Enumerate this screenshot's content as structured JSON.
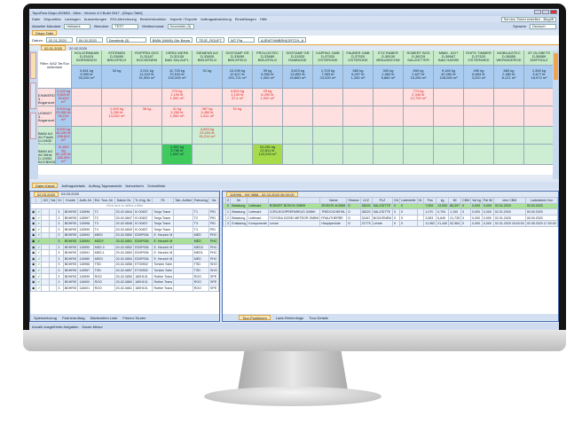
{
  "window": {
    "title": "TopoFlow Dispo AS/MW - Mein - Version 4.0 Build 2047 - [Dispo-Tafel]",
    "right_button": "Service-Ticket erstellen - Begriff",
    "language_label": "Sprache",
    "language": "Deutsch"
  },
  "menu": [
    "Datei",
    "Disposition",
    "Ladungen",
    "Auswertungen",
    "EDI-Abrechnung",
    "Bereichsfunktion",
    "Importe / Exporte",
    "Auftragsabwicklung",
    "Einstellungen",
    "Hilfe"
  ],
  "toolbar": {
    "mandant_label": "Aktueller Mandant",
    "mandant": "Hellwerk",
    "benutzer_label": "Benutzer",
    "benutzer": "TEST",
    "modul_label": "Medienmonat",
    "modul": "Dezembik (3)"
  },
  "main_tab": "Dispo-Tafel",
  "filter": {
    "datum_label": "Datum",
    "date_from": "02.01.2020",
    "date_to": "00.00.2020",
    "f1": "Dezebnik (3)",
    "f2": "BMW (NWN) Gbr Beum",
    "f3": "TEJE_ROUFT",
    "f4": "WT Pla",
    "f5": "AJEWTHMBRH|ORTCH_A"
  },
  "date_tabs": [
    "02.01.2020",
    "20.02.2020"
  ],
  "grid": {
    "corner_text": "Filter: 6/42 Ter/Tov ondensen",
    "customers": [
      {
        "name": "HOLLERMANN",
        "code": "D-33415",
        "city": "BORNSDEN",
        "sum": [
          "3,461 kg",
          "9,990 ltr",
          "33,200 m³"
        ]
      },
      {
        "name": "STERNEN",
        "code": "D-33690",
        "city": "BIELEFELD",
        "sum": [
          "34 kg",
          "",
          ""
        ]
      },
      {
        "name": "ROPPEN GDS",
        "code": "D-31167",
        "city": "BOCKENEM",
        "sum": [
          "2,011 kg",
          "11,010 ltr",
          "31,900 m³"
        ]
      },
      {
        "name": "CERDI WERK",
        "code": "D-32105",
        "city": "BAD SALZUFL",
        "sum": [
          "11,733 kg",
          "70,510 ltr",
          "102,000 m³"
        ]
      },
      {
        "name": "SIEMENS AG",
        "code": "D-33605",
        "city": "BIELEFELD",
        "sum": [
          "51 kg",
          "",
          ""
        ]
      },
      {
        "name": "SOSTAMP GR",
        "code": "D-33659",
        "city": "BIELEFELD",
        "sum": [
          "10,290 kg",
          "10,617 ltr",
          "201,721 m³"
        ]
      },
      {
        "name": "PROLOGTEC",
        "code": "D-33689",
        "city": "BIELEFELD",
        "sum": [
          "39 kg",
          "6,990 ltr",
          "1,050 m³"
        ]
      },
      {
        "name": "SOSTAMP GR",
        "code": "D-31833",
        "city": "RAMNODE",
        "sum": [
          "3,623 kg",
          "13,892 ltr",
          "20,880 m³"
        ]
      },
      {
        "name": "KAPPAG GMB",
        "code": "D-37520",
        "city": "OSTERODE",
        "sum": [
          "1,703 kg",
          "7,953 ltr",
          "23,200 m³"
        ]
      },
      {
        "name": "FAUBER GMB",
        "code": "D-37520",
        "city": "OSTERODE",
        "sum": [
          "583 kg",
          "6,007 ltr",
          "1,260 m³"
        ]
      },
      {
        "name": "ETZ RABER",
        "code": "D-38100",
        "city": "BRAUNSCHW",
        "sum": [
          "300 kg",
          "1,560 ltr",
          "5,880 m³"
        ]
      },
      {
        "name": "ROBERT BOS",
        "code": "D-38229",
        "city": "SALZGITTER",
        "sum": [
          "890 kg",
          "2,627 ltr",
          "15,260 m³"
        ]
      },
      {
        "name": "MMM - BOT",
        "code": "D-38667",
        "city": "BAD HARZB",
        "sum": [
          "9,180 kg",
          "40,280 ltr",
          "108,060 m³"
        ]
      },
      {
        "name": "ROPG TIMMER",
        "code": "D-37520",
        "city": "OSTERWIED",
        "sum": [
          "490 kg",
          "8,654 ltr",
          "3,220 m³"
        ]
      },
      {
        "name": "MOBILAGTEC",
        "code": "D-38855",
        "city": "WERNIGEROD",
        "sum": [
          "660 kg",
          "2,382 ltr",
          "8,121 m³"
        ]
      },
      {
        "name": "ZF GLOBETS",
        "code": "D-38889",
        "city": "DIEPHOLZ",
        "sum": [
          "1,350 kg",
          "3,677 ltr",
          "18,072 m³"
        ]
      }
    ],
    "depots": [
      {
        "name": "EINWERDER",
        "sub": "3 - Bugansort",
        "wa": "WA",
        "sum": [
          "3,120 kg",
          "9,810 ltr",
          "33,810 m³"
        ],
        "color": "pink",
        "cells": {
          "3": [
            "270 kg",
            "1,100 ltr",
            "1,350 m³"
          ],
          "5": [
            "4,500 kg",
            "1,100 ltr",
            "37,4 m³"
          ],
          "6": [
            "29 kg",
            "6,090 ltr",
            "1,000 m³"
          ],
          "11": [
            "774 kg",
            "2,340 ltr",
            "12,700 m³"
          ]
        }
      },
      {
        "name": "LEMWIT",
        "sub": "3 - Bugansort",
        "wa": "WA",
        "sum": [
          "9,934 kg",
          "29,900 ltr",
          "90,210 m³"
        ],
        "color": "pink",
        "cells": {
          "1": [
            "1,490 kg",
            "3,250 ltr",
            "13,250 m³"
          ],
          "2": [
            "38 kg",
            "",
            ""
          ],
          "3": [
            "41 kg",
            "3,250 ltr",
            "1,350 m³"
          ],
          "4": [
            "387 kg",
            "3,450 ltr",
            "1,011 m³"
          ],
          "5": [
            "51 kg",
            "",
            ""
          ]
        }
      },
      {
        "name": "BMW AG AV Paulin",
        "sub": "D-02630 Bocksitter",
        "wa": "WA",
        "sum": [
          "9,930 kg",
          "46,200 ltr",
          "285,810 m³"
        ],
        "color": "green",
        "cells": {
          "4": [
            "4,953 kg",
            "23,104 ltr",
            "91,214 m³"
          ]
        }
      },
      {
        "name": "BMW AG AV Mihle",
        "sub": "D-10953 BOCBNSIN",
        "wa": "WA",
        "sum": [
          "21,600 kg",
          "81,220 ltr",
          "280,090 m³"
        ],
        "color": "green",
        "cells": {
          "3": [
            "1,351 kg",
            "3,750 ltr",
            "1,000 m³"
          ],
          "6": [
            "10,281 kg",
            "22,811 ltr",
            "120,033 m³"
          ]
        },
        "hot": {
          "3": "hot",
          "6": "lime"
        }
      }
    ]
  },
  "bottom_tabs": [
    "Dater-Kanal",
    "Auftragsdetails",
    "Auftrag-Tagesansicht",
    "Nahverkehr",
    "Schnellliste"
  ],
  "left_panel": {
    "tabs": [
      "02.03.2020",
      "03.03.2020"
    ],
    "group_hint": "Click here to define a filter",
    "columns": [
      "",
      "",
      "GG",
      "Sal",
      "Kt.",
      "Kunde",
      "Auftr.-Nr.",
      "Ent. Tour.-Nr.",
      "Datum Nr.",
      "Tr.-Kng. Nr.",
      "Fil.",
      "Tab.-Auftrst",
      "Fahrzeug",
      "Ga"
    ],
    "rows": [
      [
        "3",
        "BDHRIS",
        "115996",
        "T1",
        "20-02-0844",
        "KI 00457",
        "Tonja Trane",
        "",
        "T1",
        "PID"
      ],
      [
        "3",
        "BDHRIS",
        "115997",
        "T2",
        "20-02-0847",
        "KI 00457",
        "Tonja Trane",
        "",
        "T2",
        "PID"
      ],
      [
        "3",
        "BDHRIS",
        "115998",
        "T3",
        "20-02-0848",
        "KI 00457",
        "Tonja Trane",
        "",
        "T3",
        "PID"
      ],
      [
        "3",
        "BDHRIS",
        "115999",
        "T4",
        "20-02-0849",
        "KI 00457",
        "Tonja Trane",
        "",
        "T4",
        "PID"
      ],
      [
        "3",
        "BDHRIS",
        "115993",
        "MEDI",
        "20-02-0850",
        "ED0P006",
        "E. Heurich M",
        "",
        "MED",
        "PHC"
      ],
      [
        "3",
        "BDHRIS",
        "115994",
        "MEDY",
        "20-02-0851",
        "ED0P006",
        "E. Heurich M",
        "",
        "MED",
        "PHC"
      ],
      [
        "3",
        "BDHRIS",
        "115990",
        "MED.3",
        "20-02-0852",
        "ED0P006",
        "E. Heurich M",
        "",
        "MED3",
        "PHC"
      ],
      [
        "3",
        "BDHRIS",
        "115991",
        "MED.1",
        "20-02-0853",
        "ED0P006",
        "E. Heurich M",
        "",
        "MED1",
        "PHC"
      ],
      [
        "3",
        "BDHRIS",
        "115989",
        "MEDI",
        "20-02-0854",
        "ED0P006",
        "E. Heurich M",
        "",
        "MED",
        "PHC"
      ],
      [
        "3",
        "BDHRIS",
        "115956",
        "TSD",
        "20-02-0856",
        "ET00902",
        "Torsten Sahr",
        "",
        "TSD",
        "SHO"
      ],
      [
        "3",
        "BDHRIS",
        "115957",
        "TSD",
        "20-02-0857",
        "ET00902",
        "Torsten Sahr",
        "",
        "TSD",
        "SHO"
      ],
      [
        "3",
        "BDHRIS",
        "115999",
        "ROO",
        "20-02-0859",
        "180H101",
        "Rother Trans",
        "",
        "ROO",
        "SPE"
      ],
      [
        "3",
        "BDHRIS",
        "116000",
        "ROO",
        "20-02-0860",
        "180H101",
        "Rother Trans",
        "",
        "ROO",
        "SPE"
      ],
      [
        "3",
        "BDHRIS",
        "116001",
        "ROO",
        "20-02-0861",
        "180H101",
        "Rother Trans",
        "",
        "ROO",
        "SPE"
      ]
    ],
    "selected_row": 5,
    "footer_tabs": [
      "Spielwerkzeug",
      "Partnerauftrag",
      "Wartezeiten Liste",
      "Firmen-Touren"
    ]
  },
  "right_panel": {
    "tab": "115996 - HH 9858 - 02.03.2020 06:00:00",
    "columns": [
      "",
      "Z",
      "Nr.",
      "",
      "",
      "Name",
      "Strasse",
      "LKZ",
      "PLZ",
      "Ort",
      "Ladestelle",
      "Gr.",
      "Pos",
      "kg",
      "lM",
      "CBM",
      "Val kg",
      "Pal lM",
      "cbm CBM",
      "Ladedatum Von",
      "Ladedatum Bis"
    ],
    "rows": [
      [
        "",
        "0",
        "Beladung",
        "Lieferant",
        "ROBERT BOSCH GMBH",
        "ZEHNTE-KOMM",
        "D",
        "38220",
        "SALZGITTE",
        "0",
        "0",
        "",
        "7,509",
        "13,900",
        "86,397",
        "0",
        "0,000",
        "0,000",
        "02.01.2020",
        "00.00.2020"
      ],
      [
        "",
        "1",
        "Beladung",
        "Lieferant",
        "CORLEOOPREPAREUS GMBH",
        "TREDOCHEHSL",
        "D",
        "38220",
        "SALZGITTE",
        "0",
        "0",
        "",
        "1,070",
        "0,794",
        "1,100",
        "0",
        "0,000",
        "0,000",
        "02.01.2020",
        "00.00.2020"
      ],
      [
        "",
        "2",
        "Beladung",
        "Lieferant",
        "TOYODA GOSEI METEOR GMBH",
        "FRAUTHERRE",
        "D",
        "31167",
        "BOCKENEM",
        "0",
        "0",
        "",
        "3,553",
        "6,649",
        "21,735",
        "0",
        "0,000",
        "0,000",
        "02.01.2020",
        "00.00.2020"
      ],
      [
        "",
        "3",
        "Entladung",
        "Komponente",
        "Lenne",
        "Hauptperiode",
        "D",
        "21775",
        "Lehrte",
        "0",
        "0",
        "",
        "11,962",
        "21,440",
        "52,964",
        "0",
        "0,000",
        "0,000",
        "02.01.2020 15:00:00",
        "02.05.2020 17:00:00"
      ]
    ],
    "footer_tabs": [
      "Tour-Positionen",
      "Lade-Reihenfolge",
      "Tour-Details"
    ]
  },
  "statusbar": [
    "Anzahl ausgeführte Aufgaben",
    "Dauer-Mesur"
  ],
  "colors": {
    "header_green": "#c8ecc9",
    "sum_blue": "#a9ccf0",
    "pink": "#fde0df",
    "green": "#cdeed3",
    "selected": "#a9df97",
    "accent": "#e3a33a"
  }
}
